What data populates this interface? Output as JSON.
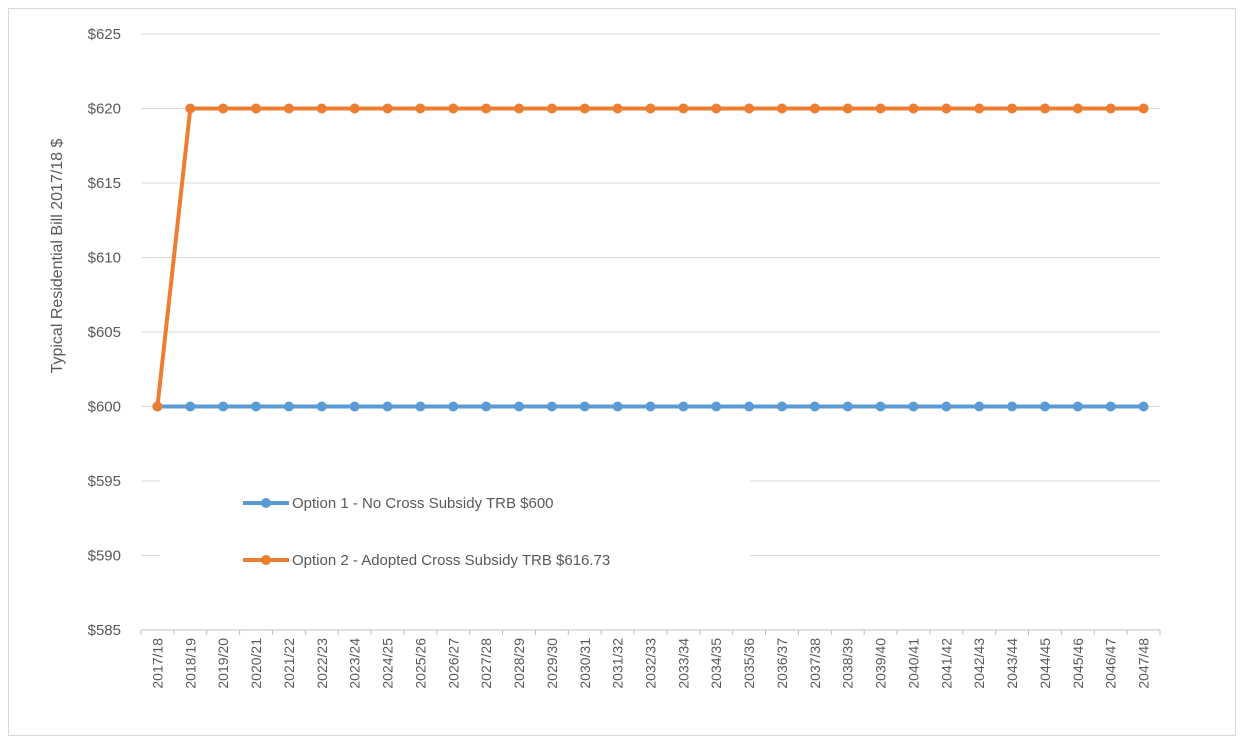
{
  "chart_data": {
    "type": "line",
    "title": "",
    "xlabel": "",
    "ylabel": "Typical Residential Bill 2017/18 $",
    "ylim": [
      585,
      625
    ],
    "yticks": [
      585,
      590,
      595,
      600,
      605,
      610,
      615,
      620,
      625
    ],
    "ytick_labels": [
      "$585",
      "$590",
      "$595",
      "$600",
      "$605",
      "$610",
      "$615",
      "$620",
      "$625"
    ],
    "grid": true,
    "legend_position": "lower-left",
    "categories": [
      "2017/18",
      "2018/19",
      "2019/20",
      "2020/21",
      "2021/22",
      "2022/23",
      "2023/24",
      "2024/25",
      "2025/26",
      "2026/27",
      "2027/28",
      "2028/29",
      "2029/30",
      "2030/31",
      "2031/32",
      "2032/33",
      "2033/34",
      "2034/35",
      "2035/36",
      "2036/37",
      "2037/38",
      "2038/39",
      "2039/40",
      "2040/41",
      "2041/42",
      "2042/43",
      "2043/44",
      "2044/45",
      "2045/46",
      "2046/47",
      "2047/48"
    ],
    "series": [
      {
        "name": "Option 1 - No Cross Subsidy TRB $600",
        "color": "#5b9bd5",
        "values": [
          600,
          600,
          600,
          600,
          600,
          600,
          600,
          600,
          600,
          600,
          600,
          600,
          600,
          600,
          600,
          600,
          600,
          600,
          600,
          600,
          600,
          600,
          600,
          600,
          600,
          600,
          600,
          600,
          600,
          600,
          600
        ]
      },
      {
        "name": "Option 2 - Adopted Cross Subsidy TRB $616.73",
        "color": "#ed7d31",
        "values": [
          600,
          620,
          620,
          620,
          620,
          620,
          620,
          620,
          620,
          620,
          620,
          620,
          620,
          620,
          620,
          620,
          620,
          620,
          620,
          620,
          620,
          620,
          620,
          620,
          620,
          620,
          620,
          620,
          620,
          620,
          620
        ]
      }
    ]
  }
}
